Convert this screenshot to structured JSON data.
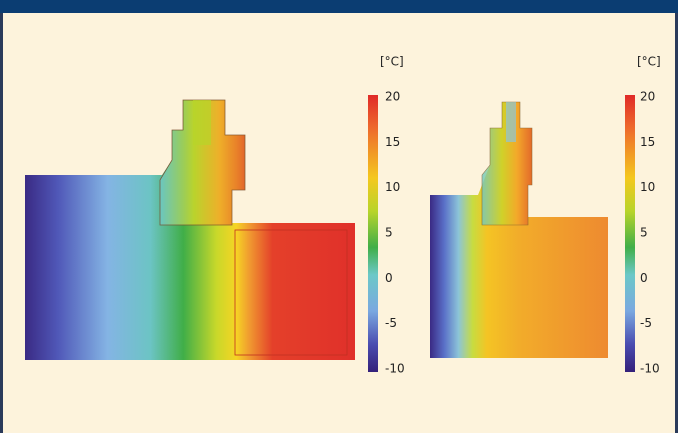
{
  "figures": [
    {
      "unit": "[°C]",
      "scale_ticks": [
        "20",
        "15",
        "10",
        "5",
        "0",
        "-5",
        "-10"
      ]
    },
    {
      "unit": "[°C]",
      "scale_ticks": [
        "20",
        "15",
        "10",
        "5",
        "0",
        "-5",
        "-10"
      ]
    }
  ]
}
